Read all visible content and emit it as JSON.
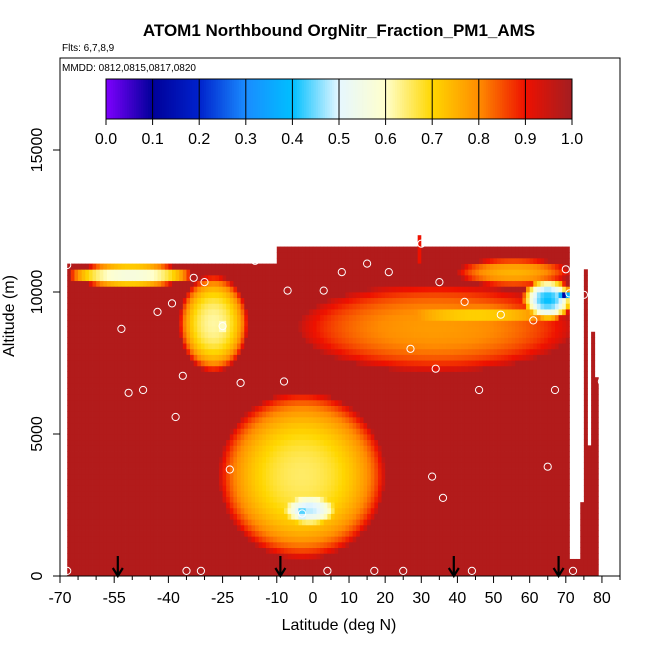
{
  "chart_data": {
    "type": "heatmap",
    "title": "ATOM1 Northbound OrgNitr_Fraction_PM1_AMS",
    "subtitle_flights": "Flts: 6,7,8,9",
    "subtitle_dates": "MMDD: 0812,0815,0817,0820",
    "xlabel": "Latitude (deg N)",
    "ylabel": "Altitude (m)",
    "xlim": [
      -70,
      85
    ],
    "ylim": [
      0,
      18000
    ],
    "x_ticks": [
      -70,
      -55,
      -40,
      -25,
      -10,
      0,
      10,
      20,
      30,
      40,
      50,
      60,
      70,
      80
    ],
    "x_tick_labels": [
      "-70",
      "-55",
      "-40",
      "-25",
      "-10",
      "0",
      "10",
      "20",
      "30",
      "40",
      "50",
      "60",
      "70",
      "80"
    ],
    "y_ticks": [
      0,
      5000,
      10000,
      15000
    ],
    "y_tick_labels": [
      "0",
      "5000",
      "10000",
      "15000"
    ],
    "colorbar": {
      "range": [
        0.0,
        1.0
      ],
      "tick_values": [
        0.0,
        0.1,
        0.2,
        0.3,
        0.4,
        0.5,
        0.6,
        0.7,
        0.8,
        0.9,
        1.0
      ],
      "tick_labels": [
        "0.0",
        "0.1",
        "0.2",
        "0.3",
        "0.4",
        "0.5",
        "0.6",
        "0.7",
        "0.8",
        "0.9",
        "1.0"
      ],
      "stops": [
        {
          "v": 0.0,
          "color": "#7f00ff"
        },
        {
          "v": 0.1,
          "color": "#000099"
        },
        {
          "v": 0.2,
          "color": "#0022cc"
        },
        {
          "v": 0.3,
          "color": "#1a8cff"
        },
        {
          "v": 0.4,
          "color": "#00bfff"
        },
        {
          "v": 0.5,
          "color": "#e6f7ff"
        },
        {
          "v": 0.6,
          "color": "#ffffcc"
        },
        {
          "v": 0.7,
          "color": "#ffd700"
        },
        {
          "v": 0.8,
          "color": "#ff8c00"
        },
        {
          "v": 0.9,
          "color": "#ee1100"
        },
        {
          "v": 1.0,
          "color": "#a31e22"
        }
      ]
    },
    "background_value": 0.98,
    "regions": [
      {
        "lat_min": -68,
        "lat_max": -33,
        "alt_min": 10200,
        "alt_max": 11000,
        "value": 0.55,
        "note": "upper tongue"
      },
      {
        "lat_min": -37,
        "lat_max": -18,
        "alt_min": 7200,
        "alt_max": 10600,
        "value": 0.62
      },
      {
        "lat_min": -27,
        "lat_max": -23,
        "alt_min": 8300,
        "alt_max": 9300,
        "value": 0.58
      },
      {
        "lat_min": -26,
        "lat_max": 20,
        "alt_min": 600,
        "alt_max": 6500,
        "value": 0.65
      },
      {
        "lat_min": -10,
        "lat_max": 8,
        "alt_min": 1700,
        "alt_max": 3000,
        "value": 0.48
      },
      {
        "lat_min": -6,
        "lat_max": 0,
        "alt_min": 1900,
        "alt_max": 2600,
        "value": 0.42
      },
      {
        "lat_min": -4,
        "lat_max": 72,
        "alt_min": 7200,
        "alt_max": 10300,
        "value": 0.78
      },
      {
        "lat_min": 20,
        "lat_max": 70,
        "alt_min": 8800,
        "alt_max": 9600,
        "value": 0.7
      },
      {
        "lat_min": 58,
        "lat_max": 72,
        "alt_min": 9000,
        "alt_max": 10500,
        "value": 0.4
      },
      {
        "lat_min": 68,
        "lat_max": 71,
        "alt_min": 9700,
        "alt_max": 10100,
        "value": 0.12
      },
      {
        "lat_min": 40,
        "lat_max": 71,
        "alt_min": 10200,
        "alt_max": 11200,
        "value": 0.75
      }
    ],
    "data_extent": {
      "lat_min": -68,
      "lat_max": 80,
      "alt_max_by_lat": [
        {
          "lat": -68,
          "alt": 11000
        },
        {
          "lat": -10,
          "alt": 11000
        },
        {
          "lat": -10,
          "alt": 11600
        },
        {
          "lat": 71,
          "alt": 11600
        },
        {
          "lat": 71,
          "alt": 10700
        },
        {
          "lat": 76,
          "alt": 10700
        },
        {
          "lat": 76,
          "alt": 8500
        },
        {
          "lat": 78,
          "alt": 8500
        },
        {
          "lat": 78,
          "alt": 7000
        },
        {
          "lat": 79,
          "alt": 7000
        },
        {
          "lat": 79,
          "alt": 5600
        },
        {
          "lat": 78,
          "alt": 5600
        },
        {
          "lat": 78,
          "alt": 4500
        },
        {
          "lat": 77,
          "alt": 4500
        },
        {
          "lat": 77,
          "alt": 2500
        },
        {
          "lat": 75,
          "alt": 2500
        },
        {
          "lat": 75,
          "alt": 600
        },
        {
          "lat": 74,
          "alt": 600
        },
        {
          "lat": 74,
          "alt": 0
        }
      ]
    },
    "gap_column": {
      "lat_min": -5,
      "lat_max": -3,
      "alt_min": 6800,
      "alt_max": 10200
    },
    "spike": {
      "lat": 29.5,
      "alt_min": 11000,
      "alt_max": 12000
    },
    "sample_points": [
      [
        -68,
        10950
      ],
      [
        -68,
        180
      ],
      [
        -53,
        8700
      ],
      [
        -51,
        6450
      ],
      [
        -47,
        6550
      ],
      [
        -43,
        9300
      ],
      [
        -39,
        9600
      ],
      [
        -38,
        5600
      ],
      [
        -36,
        7050
      ],
      [
        -35,
        180
      ],
      [
        -33,
        10500
      ],
      [
        -30,
        10350
      ],
      [
        -31,
        180
      ],
      [
        -25,
        8800
      ],
      [
        -23,
        3750
      ],
      [
        -20,
        6800
      ],
      [
        -16,
        11100
      ],
      [
        -12,
        11250
      ],
      [
        -8,
        6850
      ],
      [
        -7,
        10050
      ],
      [
        -3,
        2200
      ],
      [
        3,
        10050
      ],
      [
        4,
        180
      ],
      [
        8,
        10700
      ],
      [
        15,
        11000
      ],
      [
        17,
        180
      ],
      [
        21,
        10700
      ],
      [
        25,
        180
      ],
      [
        27,
        8000
      ],
      [
        30,
        11700
      ],
      [
        33,
        3500
      ],
      [
        34,
        7300
      ],
      [
        35,
        10350
      ],
      [
        36,
        2750
      ],
      [
        42,
        9650
      ],
      [
        44,
        180
      ],
      [
        46,
        6550
      ],
      [
        52,
        9200
      ],
      [
        61,
        9000
      ],
      [
        65,
        3850
      ],
      [
        67,
        6550
      ],
      [
        70,
        10800
      ],
      [
        71,
        9950
      ],
      [
        72,
        180
      ],
      [
        73,
        5800
      ],
      [
        75,
        9900
      ],
      [
        80,
        6850
      ]
    ],
    "arrows_lat": [
      -54,
      -9,
      39,
      68
    ]
  }
}
